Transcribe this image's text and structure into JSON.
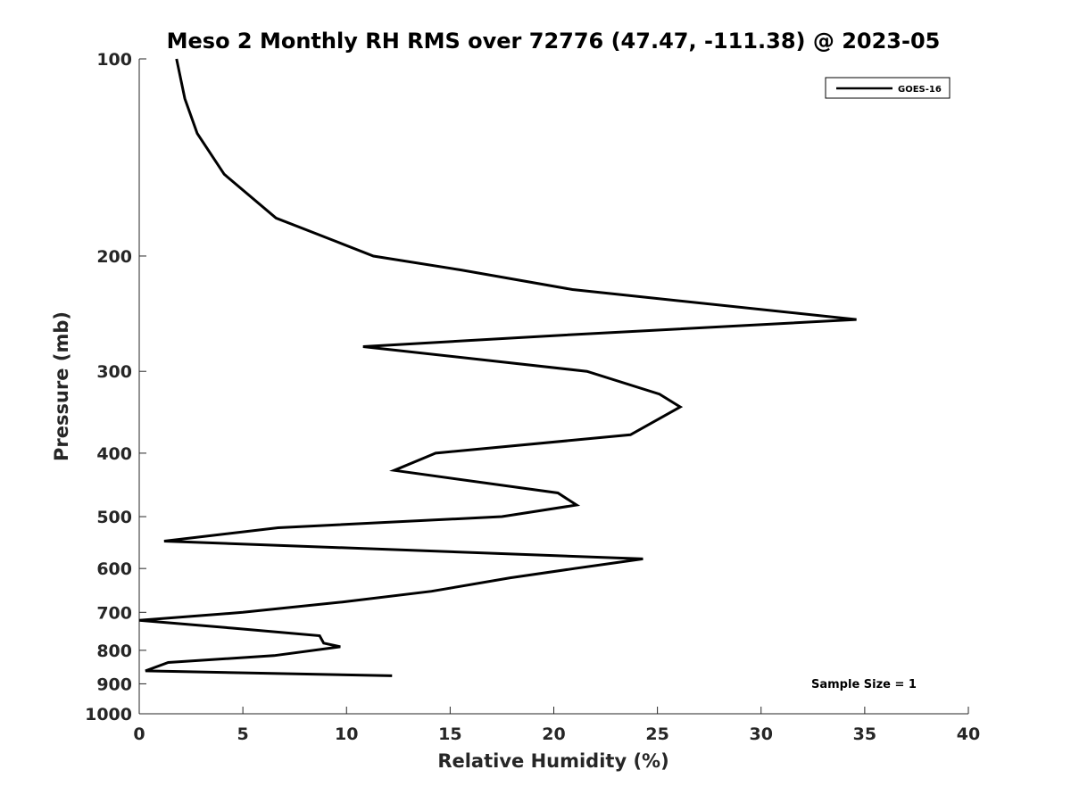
{
  "chart_data": {
    "type": "line",
    "title": "Meso 2 Monthly RH RMS over 72776 (47.47, -111.38) @ 2023-05",
    "xlabel": "Relative Humidity (%)",
    "ylabel": "Pressure (mb)",
    "xlim": [
      0,
      40
    ],
    "ylim": [
      100,
      1000
    ],
    "y_scale": "log",
    "y_reversed": true,
    "grid": false,
    "legend_position": "top-right",
    "x_ticks": [
      0,
      5,
      10,
      15,
      20,
      25,
      30,
      35,
      40
    ],
    "x_tick_labels": [
      "0",
      "5",
      "10",
      "15",
      "20",
      "25",
      "30",
      "35",
      "40"
    ],
    "y_ticks": [
      100,
      200,
      300,
      400,
      500,
      600,
      700,
      800,
      900,
      1000
    ],
    "y_tick_labels": [
      "100",
      "200",
      "300",
      "400",
      "500",
      "600",
      "700",
      "800",
      "900",
      "1000"
    ],
    "annotation": "Sample Size = 1",
    "series": [
      {
        "name": "GOES-16",
        "color": "#000000",
        "x": [
          1.8,
          2.2,
          2.8,
          4.1,
          6.6,
          9.5,
          11.3,
          15.5,
          20.9,
          34.6,
          19.6,
          10.8,
          21.6,
          25.1,
          26.1,
          23.7,
          14.3,
          12.3,
          20.2,
          21.1,
          17.5,
          6.7,
          1.2,
          24.3,
          21.0,
          17.9,
          14.1,
          9.8,
          5.0,
          0.0,
          4.5,
          8.7,
          8.9,
          9.7,
          6.5,
          1.4,
          0.3,
          12.2
        ],
        "y": [
          100,
          115,
          130,
          150,
          175,
          190,
          200,
          210,
          225,
          250,
          265,
          275,
          300,
          325,
          340,
          375,
          400,
          425,
          460,
          480,
          500,
          520,
          545,
          580,
          600,
          620,
          650,
          675,
          700,
          720,
          740,
          760,
          780,
          790,
          815,
          835,
          860,
          875
        ]
      }
    ]
  }
}
